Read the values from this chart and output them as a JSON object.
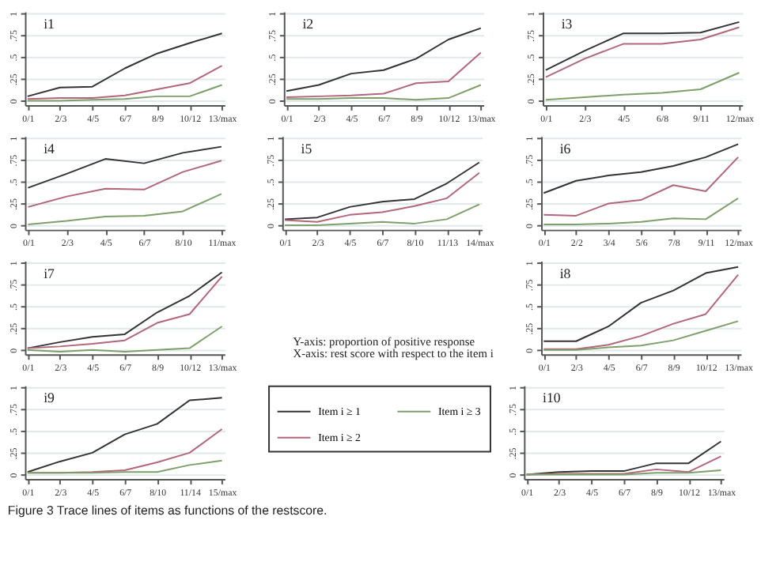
{
  "chart_data": [
    {
      "type": "line",
      "title": "i1",
      "categories": [
        "0/1",
        "2/3",
        "4/5",
        "6/7",
        "8/9",
        "10/12",
        "13/max"
      ],
      "series": [
        {
          "color": "#333333",
          "values": [
            0.05,
            0.15,
            0.16,
            0.37,
            0.54,
            0.66,
            0.77
          ]
        },
        {
          "color": "#b2667a",
          "values": [
            0.02,
            0.03,
            0.03,
            0.06,
            0.13,
            0.2,
            0.4
          ]
        },
        {
          "color": "#7f9f6a",
          "values": [
            0.0,
            0.0,
            0.01,
            0.02,
            0.05,
            0.05,
            0.18
          ]
        }
      ],
      "ylim": [
        -0.05,
        1.02
      ],
      "yticks": [
        0,
        {
          "value": 0.25,
          "label": ".25"
        },
        {
          "value": 0.5,
          "label": ".5"
        },
        {
          "value": 0.75,
          "label": ".75"
        },
        1
      ],
      "grid": "y"
    },
    {
      "type": "line",
      "title": "i2",
      "categories": [
        "0/1",
        "2/3",
        "4/5",
        "6/7",
        "8/9",
        "10/12",
        "13/max"
      ],
      "series": [
        {
          "color": "#333333",
          "values": [
            0.11,
            0.18,
            0.31,
            0.35,
            0.48,
            0.7,
            0.83
          ]
        },
        {
          "color": "#b2667a",
          "values": [
            0.04,
            0.05,
            0.06,
            0.08,
            0.2,
            0.22,
            0.55
          ]
        },
        {
          "color": "#7f9f6a",
          "values": [
            0.02,
            0.02,
            0.03,
            0.03,
            0.01,
            0.03,
            0.18
          ]
        }
      ],
      "ylim": [
        -0.05,
        1.02
      ],
      "yticks": [
        0,
        {
          "value": 0.25,
          "label": ".25"
        },
        {
          "value": 0.5,
          "label": ".5"
        },
        {
          "value": 0.75,
          "label": ".75"
        },
        1
      ],
      "grid": "y"
    },
    {
      "type": "line",
      "title": "i3",
      "categories": [
        "0/1",
        "2/3",
        "4/5",
        "6/8",
        "9/11",
        "12/max"
      ],
      "series": [
        {
          "color": "#333333",
          "values": [
            0.35,
            0.57,
            0.77,
            0.77,
            0.78,
            0.9
          ]
        },
        {
          "color": "#b2667a",
          "values": [
            0.27,
            0.48,
            0.65,
            0.65,
            0.7,
            0.84
          ]
        },
        {
          "color": "#7f9f6a",
          "values": [
            0.01,
            0.04,
            0.07,
            0.09,
            0.13,
            0.32
          ]
        }
      ],
      "ylim": [
        -0.05,
        1.02
      ],
      "yticks": [
        0,
        {
          "value": 0.25,
          "label": ".25"
        },
        {
          "value": 0.5,
          "label": ".5"
        },
        {
          "value": 0.75,
          "label": ".75"
        },
        1
      ],
      "grid": "y"
    },
    {
      "type": "line",
      "title": "i4",
      "categories": [
        "0/1",
        "2/3",
        "4/5",
        "6/7",
        "8/10",
        "11/max"
      ],
      "series": [
        {
          "color": "#333333",
          "values": [
            0.43,
            0.59,
            0.76,
            0.71,
            0.83,
            0.9
          ]
        },
        {
          "color": "#b2667a",
          "values": [
            0.21,
            0.33,
            0.42,
            0.41,
            0.61,
            0.74
          ]
        },
        {
          "color": "#7f9f6a",
          "values": [
            0.01,
            0.05,
            0.1,
            0.11,
            0.16,
            0.36
          ]
        }
      ],
      "ylim": [
        -0.05,
        1.02
      ],
      "yticks": [
        0,
        {
          "value": 0.25,
          "label": ".25"
        },
        {
          "value": 0.5,
          "label": ".5"
        },
        {
          "value": 0.75,
          "label": ".75"
        },
        1
      ],
      "grid": "y"
    },
    {
      "type": "line",
      "title": "i5",
      "categories": [
        "0/1",
        "2/3",
        "4/5",
        "6/7",
        "8/10",
        "11/13",
        "14/max"
      ],
      "series": [
        {
          "color": "#333333",
          "values": [
            0.07,
            0.09,
            0.21,
            0.27,
            0.3,
            0.48,
            0.72
          ]
        },
        {
          "color": "#b2667a",
          "values": [
            0.06,
            0.04,
            0.12,
            0.15,
            0.22,
            0.31,
            0.6
          ]
        },
        {
          "color": "#7f9f6a",
          "values": [
            0.0,
            0.0,
            0.02,
            0.04,
            0.02,
            0.07,
            0.24
          ]
        }
      ],
      "ylim": [
        -0.05,
        1.02
      ],
      "yticks": [
        0,
        {
          "value": 0.25,
          "label": ".25"
        },
        {
          "value": 0.5,
          "label": ".5"
        },
        {
          "value": 0.75,
          "label": ".75"
        },
        1
      ],
      "grid": "y"
    },
    {
      "type": "line",
      "title": "i6",
      "categories": [
        "0/1",
        "2/2",
        "3/4",
        "5/6",
        "7/8",
        "9/11",
        "12/max"
      ],
      "series": [
        {
          "color": "#333333",
          "values": [
            0.37,
            0.51,
            0.57,
            0.61,
            0.68,
            0.78,
            0.93
          ]
        },
        {
          "color": "#b2667a",
          "values": [
            0.12,
            0.11,
            0.25,
            0.29,
            0.46,
            0.39,
            0.78
          ]
        },
        {
          "color": "#7f9f6a",
          "values": [
            0.01,
            0.01,
            0.02,
            0.04,
            0.08,
            0.07,
            0.31
          ]
        }
      ],
      "ylim": [
        -0.05,
        1.02
      ],
      "yticks": [
        0,
        {
          "value": 0.25,
          "label": ".25"
        },
        {
          "value": 0.5,
          "label": ".5"
        },
        {
          "value": 0.75,
          "label": ".75"
        },
        1
      ],
      "grid": "y"
    },
    {
      "type": "line",
      "title": "i7",
      "categories": [
        "0/1",
        "2/3",
        "4/5",
        "6/7",
        "8/9",
        "10/12",
        "13/max"
      ],
      "series": [
        {
          "color": "#333333",
          "values": [
            0.02,
            0.09,
            0.15,
            0.18,
            0.43,
            0.62,
            0.89
          ]
        },
        {
          "color": "#b2667a",
          "values": [
            0.02,
            0.04,
            0.07,
            0.11,
            0.31,
            0.41,
            0.84
          ]
        },
        {
          "color": "#7f9f6a",
          "values": [
            0.0,
            -0.02,
            0.0,
            -0.02,
            0.0,
            0.02,
            0.27
          ]
        }
      ],
      "ylim": [
        -0.05,
        1.02
      ],
      "yticks": [
        0,
        {
          "value": 0.25,
          "label": ".25"
        },
        {
          "value": 0.5,
          "label": ".5"
        },
        {
          "value": 0.75,
          "label": ".75"
        },
        1
      ],
      "grid": "y"
    },
    {
      "type": "line",
      "title": "i8",
      "categories": [
        "0/1",
        "2/3",
        "4/5",
        "6/7",
        "8/9",
        "10/12",
        "13/max"
      ],
      "series": [
        {
          "color": "#333333",
          "values": [
            0.1,
            0.1,
            0.27,
            0.54,
            0.68,
            0.88,
            0.95
          ]
        },
        {
          "color": "#b2667a",
          "values": [
            0.01,
            0.01,
            0.06,
            0.16,
            0.3,
            0.41,
            0.86
          ]
        },
        {
          "color": "#7f9f6a",
          "values": [
            0.0,
            0.0,
            0.03,
            0.05,
            0.11,
            0.22,
            0.33
          ]
        }
      ],
      "ylim": [
        -0.05,
        1.02
      ],
      "yticks": [
        0,
        {
          "value": 0.25,
          "label": ".25"
        },
        {
          "value": 0.5,
          "label": ".5"
        },
        {
          "value": 0.75,
          "label": ".75"
        },
        1
      ],
      "grid": "y"
    },
    {
      "type": "line",
      "title": "i9",
      "categories": [
        "0/1",
        "2/3",
        "4/5",
        "6/7",
        "8/10",
        "11/14",
        "15/max"
      ],
      "series": [
        {
          "name": "Item i ≥ 1",
          "color": "#333333",
          "values": [
            0.03,
            0.15,
            0.25,
            0.46,
            0.58,
            0.85,
            0.88
          ]
        },
        {
          "name": "Item i ≥ 2",
          "color": "#b2667a",
          "values": [
            0.02,
            0.02,
            0.03,
            0.05,
            0.14,
            0.25,
            0.52
          ]
        },
        {
          "name": "Item i ≥ 3",
          "color": "#7f9f6a",
          "values": [
            0.02,
            0.02,
            0.02,
            0.03,
            0.03,
            0.11,
            0.16
          ]
        }
      ],
      "ylim": [
        -0.05,
        1.02
      ],
      "yticks": [
        0,
        {
          "value": 0.25,
          "label": ".25"
        },
        {
          "value": 0.5,
          "label": ".5"
        },
        {
          "value": 0.75,
          "label": ".75"
        },
        1
      ],
      "grid": "y",
      "legend": "right"
    },
    {
      "type": "line",
      "title": "i10",
      "categories": [
        "0/1",
        "2/3",
        "4/5",
        "6/7",
        "8/9",
        "10/12",
        "13/max"
      ],
      "series": [
        {
          "color": "#333333",
          "values": [
            0.0,
            0.03,
            0.04,
            0.04,
            0.13,
            0.13,
            0.38
          ]
        },
        {
          "color": "#b2667a",
          "values": [
            0.0,
            0.01,
            0.01,
            0.01,
            0.06,
            0.03,
            0.21
          ]
        },
        {
          "color": "#7f9f6a",
          "values": [
            0.0,
            0.0,
            0.0,
            0.0,
            0.02,
            0.02,
            0.05
          ]
        }
      ],
      "ylim": [
        -0.05,
        1.02
      ],
      "yticks": [
        0,
        {
          "value": 0.25,
          "label": ".25"
        },
        {
          "value": 0.5,
          "label": ".5"
        },
        {
          "value": 0.75,
          "label": ".75"
        },
        1
      ],
      "grid": "y"
    },
    {
      "type": "other",
      "annotations": [
        "Y-axis: proportion of positive response",
        "X-axis: rest score with respect to the item i",
        "Figure 3 Trace lines of items as functions of the restscore."
      ]
    }
  ]
}
